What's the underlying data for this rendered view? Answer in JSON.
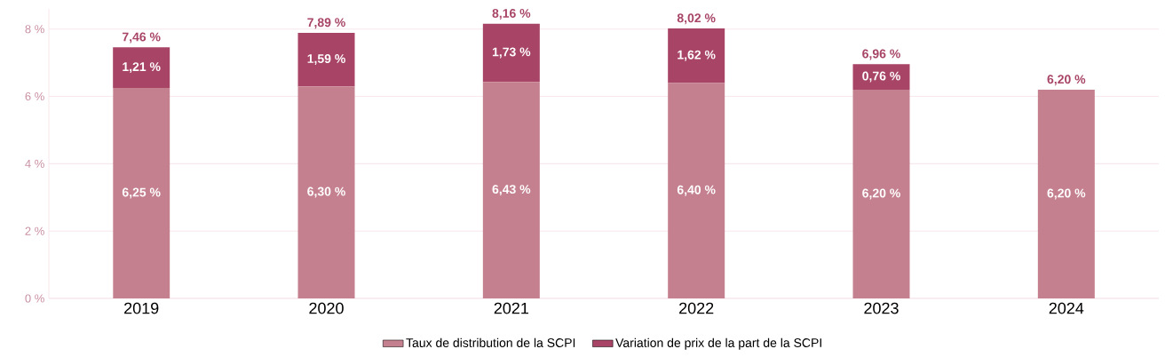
{
  "chart_data": {
    "type": "bar",
    "stacked": true,
    "categories": [
      "2019",
      "2020",
      "2021",
      "2022",
      "2023",
      "2024"
    ],
    "series": [
      {
        "name": "Taux de distribution de la SCPI",
        "color": "#c5808f",
        "values": [
          6.25,
          6.3,
          6.43,
          6.4,
          6.2,
          6.2
        ],
        "value_labels": [
          "6,25 %",
          "6,30 %",
          "6,43 %",
          "6,40 %",
          "6,20 %",
          "6,20 %"
        ]
      },
      {
        "name": "Variation de prix de la part de la SCPI",
        "color": "#a84566",
        "values": [
          1.21,
          1.59,
          1.73,
          1.62,
          0.76,
          null
        ],
        "value_labels": [
          "1,21 %",
          "1,59 %",
          "1,73 %",
          "1,62 %",
          "0,76 %",
          null
        ]
      }
    ],
    "totals": [
      "7,46 %",
      "7,89 %",
      "8,16 %",
      "8,02 %",
      "6,96 %",
      "6,20 %"
    ],
    "ylim": [
      0,
      8.6
    ],
    "yticks": [
      {
        "value": 0,
        "label": "0 %"
      },
      {
        "value": 2,
        "label": "2 %"
      },
      {
        "value": 4,
        "label": "4 %"
      },
      {
        "value": 6,
        "label": "6 %"
      },
      {
        "value": 8,
        "label": "8 %"
      }
    ],
    "grid": "y",
    "legend": "bottom"
  }
}
